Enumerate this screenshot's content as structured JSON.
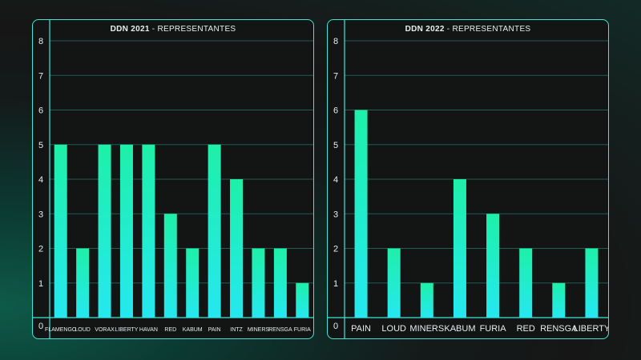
{
  "chart_data": [
    {
      "type": "bar",
      "title_bold": "DDN 2021",
      "title_rest": " - REPRESENTANTES",
      "categories": [
        "FLAMENGO",
        "LOUD",
        "VORAX",
        "LIBERTY",
        "HAVAN",
        "RED",
        "KABUM",
        "PAIN",
        "INTZ",
        "MINERS",
        "RENSGA",
        "FURIA"
      ],
      "values": [
        5,
        2,
        5,
        5,
        5,
        3,
        2,
        5,
        4,
        2,
        2,
        1
      ],
      "ylim": [
        0,
        8
      ],
      "yticks": [
        "0",
        "1",
        "2",
        "3",
        "4",
        "5",
        "6",
        "7",
        "8"
      ],
      "grid": true,
      "colors": {
        "bar_top": "#1ef0a8",
        "bar_bottom": "#25e8f0",
        "border": "#3fe6d8"
      }
    },
    {
      "type": "bar",
      "title_bold": "DDN 2022",
      "title_rest": " - REPRESENTANTES",
      "categories": [
        "PAIN",
        "LOUD",
        "MINERS",
        "KABUM",
        "FURIA",
        "RED",
        "RENSGA",
        "LIBERTY"
      ],
      "values": [
        6,
        2,
        1,
        4,
        3,
        2,
        1,
        2
      ],
      "ylim": [
        0,
        8
      ],
      "yticks": [
        "0",
        "1",
        "2",
        "3",
        "4",
        "5",
        "6",
        "7",
        "8"
      ],
      "grid": true,
      "colors": {
        "bar_top": "#1ef0a8",
        "bar_bottom": "#25e8f0",
        "border": "#3fe6d8"
      }
    }
  ]
}
